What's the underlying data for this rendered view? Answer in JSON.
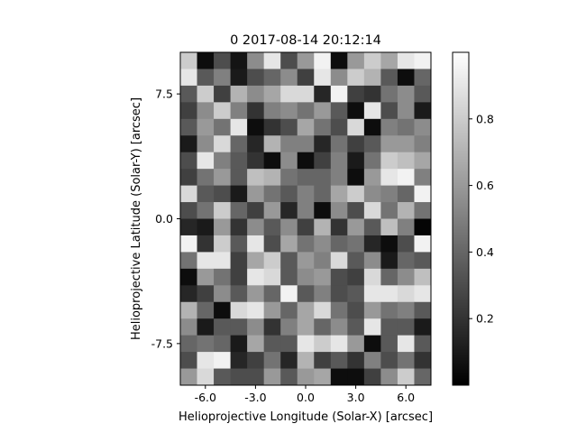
{
  "chart_data": {
    "type": "heatmap",
    "title": "0  2017-08-14 20:12:14",
    "xlabel": "Helioprojective Longitude (Solar-X) [arcsec]",
    "ylabel": "Helioprojective Latitude (Solar-Y) [arcsec]",
    "x_ticks": [
      {
        "value": -6.0,
        "label": "-6.0"
      },
      {
        "value": -3.0,
        "label": "-3.0"
      },
      {
        "value": 0.0,
        "label": "0.0"
      },
      {
        "value": 3.0,
        "label": "3.0"
      },
      {
        "value": 6.0,
        "label": "6.0"
      }
    ],
    "y_ticks": [
      {
        "value": 7.5,
        "label": "7.5"
      },
      {
        "value": 0.0,
        "label": "0.0"
      },
      {
        "value": -7.5,
        "label": "-7.5"
      }
    ],
    "xlim": [
      -7.5,
      7.5
    ],
    "ylim": [
      -10.0,
      10.0
    ],
    "rows_top_to_bottom": [
      [
        0.8,
        0.05,
        0.3,
        0.08,
        0.55,
        0.9,
        0.3,
        0.6,
        0.95,
        0.05,
        0.6,
        0.8,
        0.65,
        0.9,
        0.95
      ],
      [
        0.9,
        0.35,
        0.5,
        0.1,
        0.3,
        0.4,
        0.55,
        0.25,
        0.9,
        0.55,
        0.8,
        0.7,
        0.35,
        0.05,
        0.4
      ],
      [
        0.35,
        0.8,
        0.25,
        0.7,
        0.55,
        0.65,
        0.85,
        0.85,
        0.15,
        0.95,
        0.25,
        0.2,
        0.45,
        0.55,
        0.35
      ],
      [
        0.25,
        0.55,
        0.8,
        0.5,
        0.2,
        0.5,
        0.55,
        0.45,
        0.6,
        0.35,
        0.05,
        0.9,
        0.3,
        0.55,
        0.1
      ],
      [
        0.35,
        0.6,
        0.45,
        0.9,
        0.05,
        0.2,
        0.3,
        0.65,
        0.45,
        0.3,
        0.85,
        0.05,
        0.5,
        0.45,
        0.55
      ],
      [
        0.1,
        0.55,
        0.85,
        0.4,
        0.15,
        0.7,
        0.5,
        0.5,
        0.15,
        0.45,
        0.25,
        0.35,
        0.6,
        0.6,
        0.5
      ],
      [
        0.3,
        0.9,
        0.5,
        0.35,
        0.2,
        0.05,
        0.55,
        0.05,
        0.25,
        0.5,
        0.1,
        0.45,
        0.8,
        0.75,
        0.65
      ],
      [
        0.25,
        0.45,
        0.6,
        0.35,
        0.75,
        0.7,
        0.45,
        0.4,
        0.4,
        0.5,
        0.05,
        0.6,
        0.9,
        0.95,
        0.5
      ],
      [
        0.85,
        0.35,
        0.3,
        0.1,
        0.6,
        0.45,
        0.35,
        0.5,
        0.4,
        0.65,
        0.8,
        0.55,
        0.5,
        0.4,
        0.95
      ],
      [
        0.3,
        0.45,
        0.8,
        0.4,
        0.25,
        0.6,
        0.15,
        0.5,
        0.05,
        0.55,
        0.3,
        0.85,
        0.45,
        0.7,
        0.45
      ],
      [
        0.15,
        0.1,
        0.6,
        0.2,
        0.55,
        0.35,
        0.55,
        0.25,
        0.7,
        0.2,
        0.6,
        0.35,
        0.75,
        0.5,
        0.02
      ],
      [
        0.95,
        0.2,
        0.8,
        0.35,
        0.9,
        0.3,
        0.65,
        0.45,
        0.55,
        0.4,
        0.45,
        0.15,
        0.05,
        0.3,
        0.95
      ],
      [
        0.45,
        0.9,
        0.9,
        0.25,
        0.65,
        0.8,
        0.35,
        0.6,
        0.5,
        0.85,
        0.35,
        0.55,
        0.1,
        0.4,
        0.35
      ],
      [
        0.05,
        0.6,
        0.45,
        0.25,
        0.9,
        0.85,
        0.35,
        0.55,
        0.6,
        0.3,
        0.25,
        0.85,
        0.4,
        0.55,
        0.75
      ],
      [
        0.15,
        0.25,
        0.55,
        0.35,
        0.6,
        0.4,
        0.95,
        0.35,
        0.5,
        0.3,
        0.35,
        0.9,
        0.9,
        0.85,
        0.9
      ],
      [
        0.7,
        0.4,
        0.05,
        0.85,
        0.9,
        0.6,
        0.4,
        0.65,
        0.85,
        0.45,
        0.3,
        0.6,
        0.45,
        0.5,
        0.35
      ],
      [
        0.55,
        0.1,
        0.35,
        0.35,
        0.55,
        0.2,
        0.5,
        0.65,
        0.4,
        0.55,
        0.35,
        0.9,
        0.35,
        0.35,
        0.1
      ],
      [
        0.4,
        0.45,
        0.4,
        0.1,
        0.65,
        0.35,
        0.35,
        0.9,
        0.8,
        0.9,
        0.6,
        0.05,
        0.35,
        0.9,
        0.35
      ],
      [
        0.3,
        0.9,
        0.95,
        0.15,
        0.25,
        0.45,
        0.15,
        0.7,
        0.25,
        0.35,
        0.2,
        0.5,
        0.3,
        0.45,
        0.2
      ],
      [
        0.6,
        0.85,
        0.35,
        0.3,
        0.3,
        0.6,
        0.35,
        0.6,
        0.65,
        0.05,
        0.05,
        0.25,
        0.55,
        0.8,
        0.4
      ]
    ],
    "colorbar": {
      "cmap": "gray",
      "range": [
        0.0,
        1.0
      ],
      "ticks": [
        {
          "value": 0.2,
          "label": "0.2"
        },
        {
          "value": 0.4,
          "label": "0.4"
        },
        {
          "value": 0.6,
          "label": "0.6"
        },
        {
          "value": 0.8,
          "label": "0.8"
        }
      ]
    },
    "grid": false
  }
}
